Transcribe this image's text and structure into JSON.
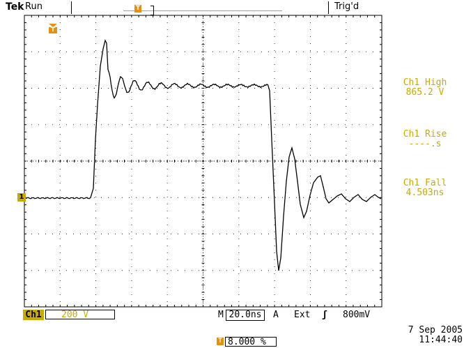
{
  "status_bar": {
    "brand": "Tek",
    "run_state": "Run",
    "trigger_state": "Trig'd"
  },
  "markers": {
    "trigger_position_glyph": "T",
    "channel1_glyph": "1"
  },
  "measurements": [
    {
      "label": "Ch1 High",
      "value": "865.2 V"
    },
    {
      "label": "Ch1 Rise",
      "value": "----.s"
    },
    {
      "label": "Ch1 Fall",
      "value": "4.503ns"
    }
  ],
  "bottom_bar": {
    "channel": "Ch1",
    "volts_per_div": "200 V",
    "time_prefix": "M",
    "time_per_div": "20.0ns",
    "trigger_mode": "A",
    "trigger_source": "Ext",
    "trigger_slope_glyph": "ʃ",
    "trigger_level": "800mV",
    "trigger_position": "8.000 %"
  },
  "timestamp": {
    "date": "7 Sep  2005",
    "time": "11:44:40"
  },
  "colors": {
    "accent_orange": "#e8900a",
    "measurement_yellow": "#c8aa00",
    "channel_yellow": "#c8aa00",
    "graticule": "#000000",
    "trace": "#000000"
  }
}
